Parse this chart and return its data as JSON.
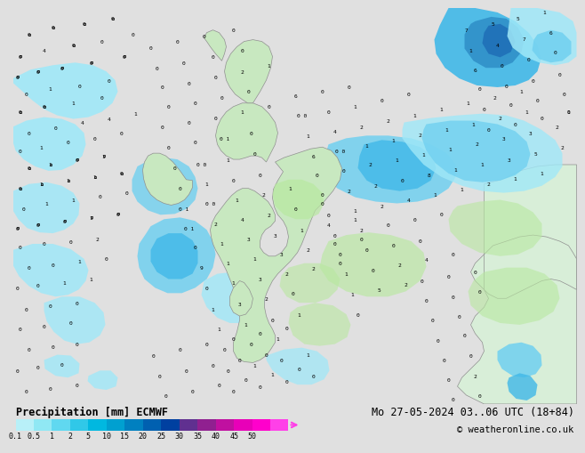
{
  "title_left": "Precipitation [mm] ECMWF",
  "title_right": "Mo 27-05-2024 03..06 UTC (18+84)",
  "copyright": "© weatheronline.co.uk",
  "colorbar_labels": [
    "0.1",
    "0.5",
    "1",
    "2",
    "5",
    "10",
    "15",
    "20",
    "25",
    "30",
    "35",
    "40",
    "45",
    "50"
  ],
  "colorbar_colors": [
    "#b8f0f8",
    "#90e8f4",
    "#60d8f0",
    "#30c8e8",
    "#00b8e0",
    "#00a0d0",
    "#0080c0",
    "#0060b0",
    "#0040a0",
    "#603090",
    "#902090",
    "#c010a0",
    "#e800b8",
    "#ff00cc",
    "#ff40e8"
  ],
  "bg_color": "#e0e0e0",
  "land_color": "#d8eed8",
  "ocean_color": "#e8e8e8",
  "uk_land_color": "#c8e8c0",
  "precip_light_cyan": "#a0e8f8",
  "precip_medium_cyan": "#70d0f0",
  "precip_dark_cyan": "#40b8e8",
  "precip_blue": "#60a8d8",
  "precip_dark_blue": "#4080c0",
  "font_size_label": 7,
  "font_size_title": 8.5,
  "font_size_copy": 7.5
}
